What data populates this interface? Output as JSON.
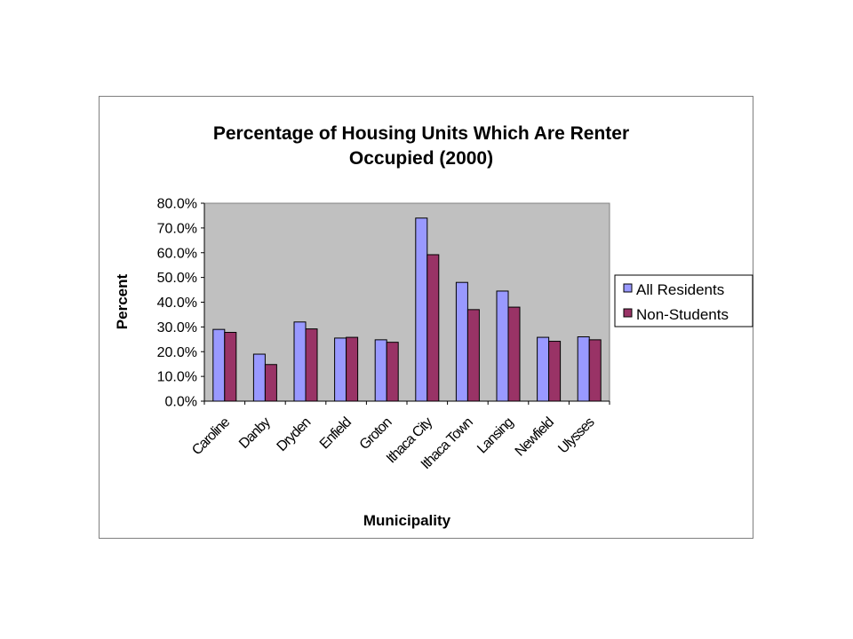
{
  "chart_data": {
    "type": "bar",
    "title_lines": [
      "Percentage of Housing Units Which Are Renter",
      "Occupied (2000)"
    ],
    "xlabel": "Municipality",
    "ylabel": "Percent",
    "ylim": [
      0,
      80
    ],
    "yticks": [
      "0.0%",
      "10.0%",
      "20.0%",
      "30.0%",
      "40.0%",
      "50.0%",
      "60.0%",
      "70.0%",
      "80.0%"
    ],
    "categories": [
      "Caroline",
      "Danby",
      "Dryden",
      "Enfield",
      "Groton",
      "Ithaca City",
      "Ithaca Town",
      "Lansing",
      "Newfield",
      "Ulysses"
    ],
    "series": [
      {
        "name": "All Residents",
        "color": "#9999ff",
        "values": [
          29.0,
          19.0,
          32.0,
          25.5,
          24.8,
          74.0,
          48.0,
          44.5,
          25.8,
          26.0
        ]
      },
      {
        "name": "Non-Students",
        "color": "#993366",
        "values": [
          27.8,
          14.8,
          29.2,
          25.8,
          23.8,
          59.2,
          37.0,
          38.0,
          24.2,
          24.8
        ]
      }
    ],
    "grid": false,
    "plot_background": "#c0c0c0",
    "legend_position": "right"
  }
}
